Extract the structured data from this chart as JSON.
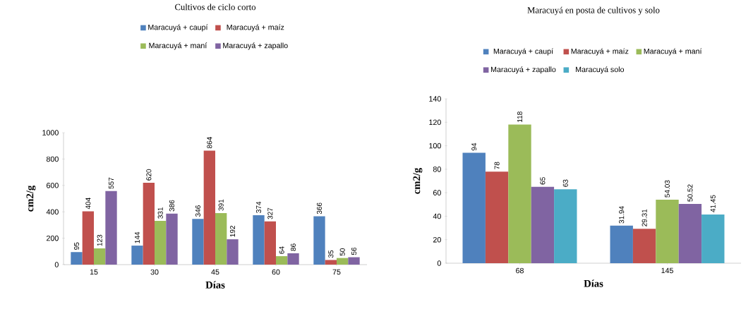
{
  "chart_data": [
    {
      "type": "bar",
      "title": "Cultivos de ciclo corto",
      "xlabel": "Días",
      "ylabel": "cm2/g",
      "categories": [
        "15",
        "30",
        "45",
        "60",
        "75"
      ],
      "series": [
        {
          "name": "Maracuyá + caupí",
          "color": "#4f81bd",
          "values": [
            95,
            144,
            346,
            374,
            366
          ]
        },
        {
          "name": "Maracuyá + maíz",
          "color": "#c0504d",
          "values": [
            404,
            620,
            864,
            327,
            35
          ]
        },
        {
          "name": "Maracuyá + maní",
          "color": "#9bbb59",
          "values": [
            123,
            331,
            391,
            64,
            50
          ]
        },
        {
          "name": "Maracuyá + zapallo",
          "color": "#8064a2",
          "values": [
            557,
            386,
            192,
            86,
            56
          ]
        }
      ],
      "ylim": [
        0,
        1000
      ],
      "yticks": [
        0,
        200,
        400,
        600,
        800,
        1000
      ],
      "legend": "top",
      "data_labels": true
    },
    {
      "type": "bar",
      "title": "Maracuyá en posta de cultivos y solo",
      "xlabel": "Días",
      "ylabel": "cm2/g",
      "categories": [
        "68",
        "145"
      ],
      "series": [
        {
          "name": "Maracuyá + caupí",
          "color": "#4f81bd",
          "values": [
            94,
            31.94
          ]
        },
        {
          "name": "Maracuyá + maíz",
          "color": "#c0504d",
          "values": [
            78,
            29.31
          ]
        },
        {
          "name": "Maracuyá + maní",
          "color": "#9bbb59",
          "values": [
            118,
            54.03
          ]
        },
        {
          "name": "Maracuyá + zapallo",
          "color": "#8064a2",
          "values": [
            65,
            50.52
          ]
        },
        {
          "name": "Maracuyá solo",
          "color": "#4bacc6",
          "values": [
            63,
            41.45
          ]
        }
      ],
      "ylim": [
        0,
        140
      ],
      "yticks": [
        0,
        20,
        40,
        60,
        80,
        100,
        120,
        140
      ],
      "legend": "top",
      "data_labels": true
    }
  ]
}
